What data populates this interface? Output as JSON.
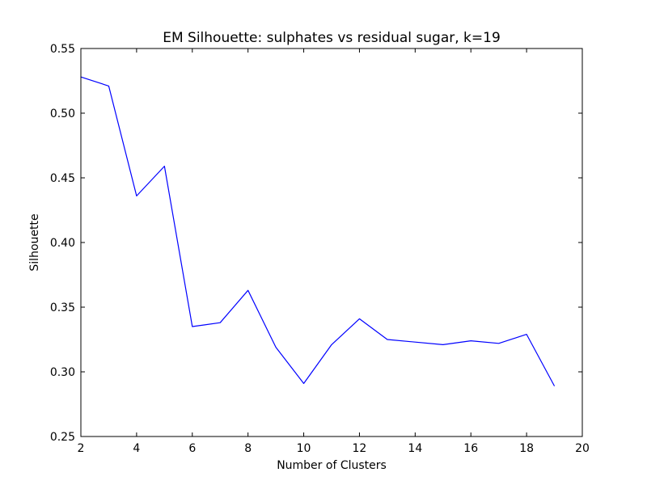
{
  "chart_data": {
    "type": "line",
    "title": "EM Silhouette: sulphates vs residual sugar, k=19",
    "xlabel": "Number of Clusters",
    "ylabel": "Silhouette",
    "xlim": [
      2,
      20
    ],
    "ylim": [
      0.25,
      0.55
    ],
    "xticks": [
      2,
      4,
      6,
      8,
      10,
      12,
      14,
      16,
      18,
      20
    ],
    "xtick_labels": [
      "2",
      "4",
      "6",
      "8",
      "10",
      "12",
      "14",
      "16",
      "18",
      "20"
    ],
    "yticks": [
      0.25,
      0.3,
      0.35,
      0.4,
      0.45,
      0.5,
      0.55
    ],
    "ytick_labels": [
      "0.25",
      "0.30",
      "0.35",
      "0.40",
      "0.45",
      "0.50",
      "0.55"
    ],
    "grid": false,
    "line_color": "#0000ff",
    "series": [
      {
        "x": [
          2,
          3,
          4,
          5,
          6,
          7,
          8,
          9,
          10,
          11,
          12,
          13,
          14,
          15,
          16,
          17,
          18,
          19
        ],
        "values": [
          0.528,
          0.521,
          0.436,
          0.459,
          0.335,
          0.338,
          0.363,
          0.319,
          0.291,
          0.321,
          0.341,
          0.325,
          0.323,
          0.321,
          0.324,
          0.322,
          0.329,
          0.289
        ]
      }
    ]
  }
}
